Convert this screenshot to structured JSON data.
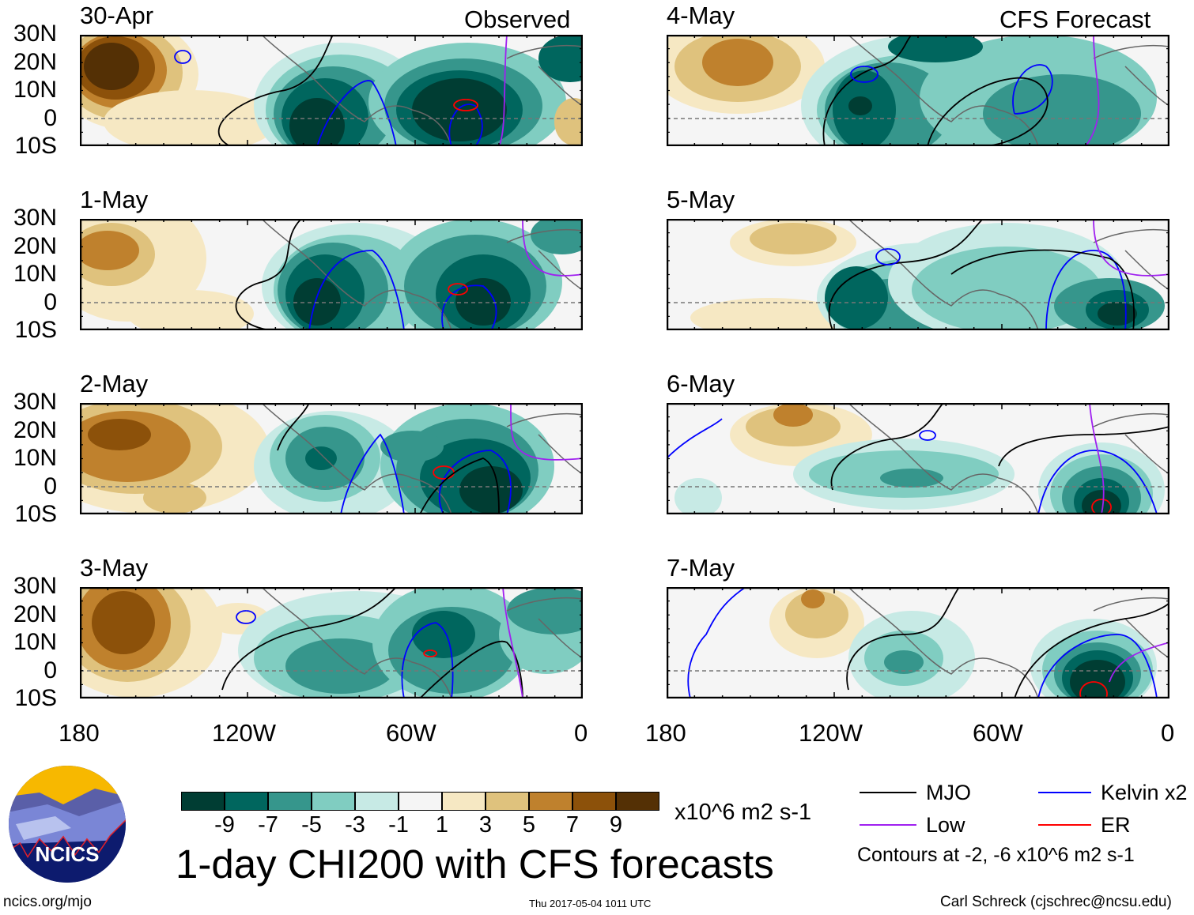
{
  "panels": [
    {
      "date": "30-Apr",
      "label": "Observed"
    },
    {
      "date": "1-May"
    },
    {
      "date": "2-May"
    },
    {
      "date": "3-May"
    },
    {
      "date": "4-May",
      "label": "CFS Forecast"
    },
    {
      "date": "5-May"
    },
    {
      "date": "6-May"
    },
    {
      "date": "7-May"
    }
  ],
  "lat_labels": [
    "30N",
    "20N",
    "10N",
    "0",
    "10S"
  ],
  "lon_labels": [
    "180",
    "120W",
    "60W",
    "0"
  ],
  "colorbar": {
    "colors": [
      "#003d33",
      "#00665e",
      "#36968c",
      "#80cdc1",
      "#c7eae5",
      "#f5f5f5",
      "#f6e8c3",
      "#dfc27d",
      "#bf812d",
      "#8c510a",
      "#543005"
    ],
    "ticks": [
      "-9",
      "-7",
      "-5",
      "-3",
      "-1",
      "1",
      "3",
      "5",
      "7",
      "9"
    ],
    "units": "x10^6 m2 s-1"
  },
  "title": "1-day CHI200 with CFS forecasts",
  "legend": {
    "items": [
      {
        "label": "MJO",
        "color": "#000000"
      },
      {
        "label": "Kelvin x2",
        "color": "#0000ff"
      },
      {
        "label": "Low",
        "color": "#a020f0"
      },
      {
        "label": "ER",
        "color": "#ff0000"
      }
    ],
    "note": "Contours at -2, -6 x10^6 m2 s-1"
  },
  "logo": {
    "text": "NCICS"
  },
  "footer": {
    "url": "ncics.org/mjo",
    "timestamp": "Thu 2017-05-04 1011 UTC",
    "credit": "Carl Schreck (cjschrec@ncsu.edu)"
  }
}
